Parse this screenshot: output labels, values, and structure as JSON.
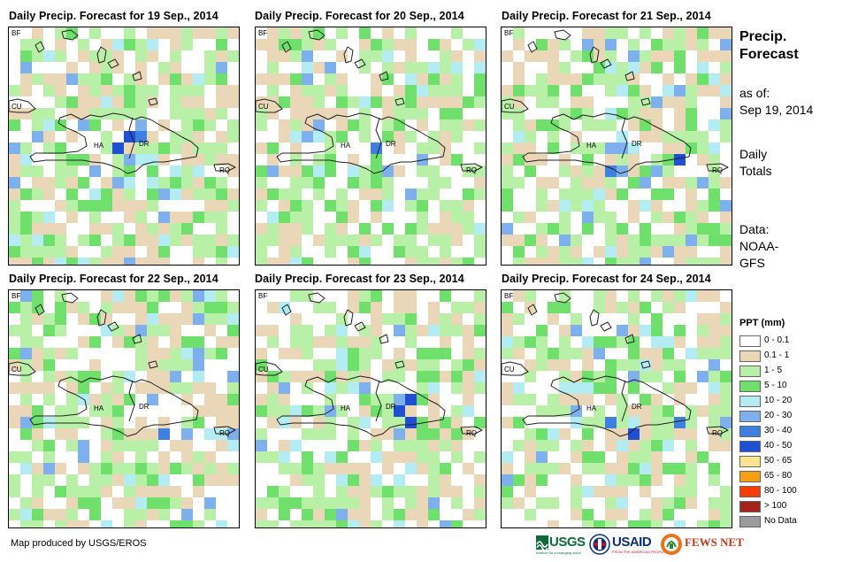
{
  "panels": [
    {
      "title": "Daily Precip. Forecast for 19 Sep., 2014",
      "seed": 11
    },
    {
      "title": "Daily Precip. Forecast for 20 Sep., 2014",
      "seed": 23
    },
    {
      "title": "Daily Precip. Forecast for 21 Sep., 2014",
      "seed": 37
    },
    {
      "title": "Daily Precip. Forecast for 22 Sep., 2014",
      "seed": 41
    },
    {
      "title": "Daily Precip. Forecast for 23 Sep., 2014",
      "seed": 53
    },
    {
      "title": "Daily Precip. Forecast for 24 Sep., 2014",
      "seed": 67
    }
  ],
  "map_labels": {
    "bf": "BF",
    "cu": "CU",
    "ha": "HA",
    "dr": "DR",
    "rq": "RQ"
  },
  "sidebar": {
    "title_line1": "Precip.",
    "title_line2": "Forecast",
    "asof_line1": "as of:",
    "asof_line2": "Sep 19, 2014",
    "totals_line1": "Daily",
    "totals_line2": "Totals",
    "data_line1": "Data:",
    "data_line2": "NOAA-",
    "data_line3": "GFS"
  },
  "legend": {
    "title": "PPT (mm)",
    "items": [
      {
        "label": "0 - 0.1",
        "color": "#ffffff"
      },
      {
        "label": "0.1 - 1",
        "color": "#ead7b7"
      },
      {
        "label": "1 - 5",
        "color": "#b9f0a7"
      },
      {
        "label": "5 - 10",
        "color": "#6fe06b"
      },
      {
        "label": "10 - 20",
        "color": "#b4ecf4"
      },
      {
        "label": "20 - 30",
        "color": "#7fb0ee"
      },
      {
        "label": "30 - 40",
        "color": "#3f7fe0"
      },
      {
        "label": "40 - 50",
        "color": "#1f4fd4"
      },
      {
        "label": "50 - 65",
        "color": "#fce38e"
      },
      {
        "label": "65 - 80",
        "color": "#f5a10f"
      },
      {
        "label": "80 - 100",
        "color": "#f53d05"
      },
      {
        "label": "> 100",
        "color": "#a3221a"
      },
      {
        "label": "No Data",
        "color": "#9b9b9b"
      }
    ]
  },
  "footer": {
    "credit": "Map produced by USGS/EROS",
    "logo_usgs": "USGS",
    "logo_usgs_tagline": "science for a changing world",
    "logo_usaid": "USAID",
    "logo_usaid_tagline": "FROM THE AMERICAN PEOPLE",
    "logo_fews": "FEWS NET"
  }
}
